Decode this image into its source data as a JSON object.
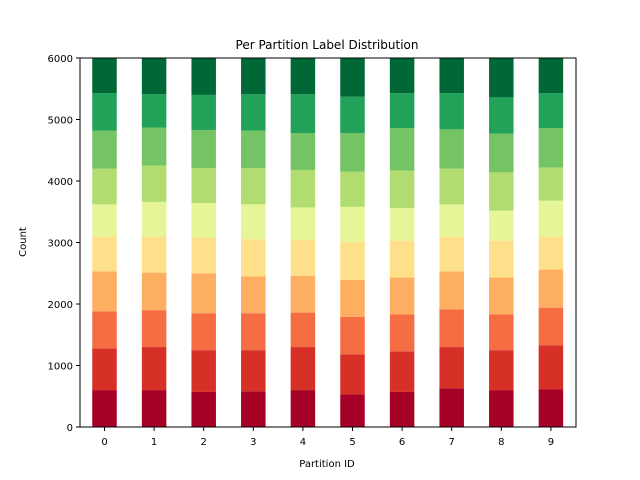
{
  "chart_data": {
    "type": "bar",
    "stacked": true,
    "title": "Per Partition Label Distribution",
    "xlabel": "Partition ID",
    "ylabel": "Count",
    "ylim": [
      0,
      6000
    ],
    "yticks": [
      "0",
      "1000",
      "2000",
      "3000",
      "4000",
      "5000",
      "6000"
    ],
    "categories": [
      "0",
      "1",
      "2",
      "3",
      "4",
      "5",
      "6",
      "7",
      "8",
      "9"
    ],
    "legend": "none",
    "grid": false,
    "series": [
      {
        "color": "#a50026",
        "values": [
          600,
          600,
          570,
          580,
          600,
          530,
          570,
          630,
          600,
          610
        ]
      },
      {
        "color": "#d73027",
        "values": [
          680,
          700,
          680,
          670,
          700,
          650,
          660,
          670,
          650,
          720
        ]
      },
      {
        "color": "#f46d43",
        "values": [
          600,
          600,
          600,
          600,
          560,
          610,
          600,
          610,
          580,
          610
        ]
      },
      {
        "color": "#fdae61",
        "values": [
          650,
          610,
          650,
          600,
          600,
          600,
          600,
          620,
          600,
          620
        ]
      },
      {
        "color": "#fee08b",
        "values": [
          570,
          580,
          580,
          600,
          580,
          620,
          600,
          560,
          600,
          530
        ]
      },
      {
        "color": "#ffffbf",
        "values": [
          0,
          0,
          0,
          0,
          0,
          0,
          0,
          0,
          0,
          0
        ]
      },
      {
        "color": "#e6f598",
        "values": [
          520,
          570,
          560,
          570,
          530,
          570,
          530,
          530,
          490,
          590
        ]
      },
      {
        "color": "#b1dd70",
        "values": [
          580,
          590,
          570,
          590,
          610,
          570,
          610,
          580,
          620,
          540
        ]
      },
      {
        "color": "#74c365",
        "values": [
          620,
          620,
          620,
          610,
          600,
          630,
          690,
          640,
          630,
          640
        ]
      },
      {
        "color": "#22a158",
        "values": [
          610,
          540,
          570,
          590,
          630,
          590,
          570,
          590,
          590,
          570
        ]
      },
      {
        "color": "#006837",
        "values": [
          570,
          590,
          600,
          590,
          590,
          630,
          570,
          570,
          640,
          570
        ]
      }
    ]
  }
}
